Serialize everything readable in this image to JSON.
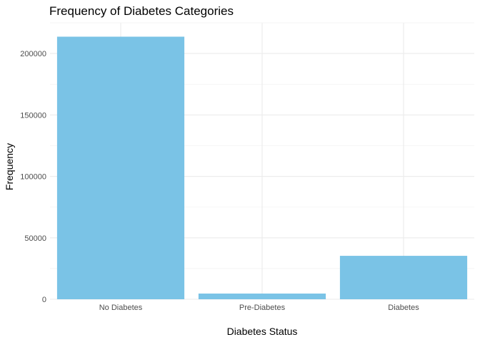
{
  "chart_data": {
    "type": "bar",
    "title": "Frequency of Diabetes Categories",
    "xlabel": "Diabetes Status",
    "ylabel": "Frequency",
    "categories": [
      "No Diabetes",
      "Pre-Diabetes",
      "Diabetes"
    ],
    "values": [
      213703,
      4631,
      35346
    ],
    "ylim": [
      0,
      225000
    ],
    "yticks": [
      0,
      50000,
      100000,
      150000,
      200000
    ],
    "ytick_labels": [
      "0",
      "50000",
      "100000",
      "150000",
      "200000"
    ],
    "bar_color": "#7AC3E6",
    "grid": true,
    "legend": "none"
  }
}
